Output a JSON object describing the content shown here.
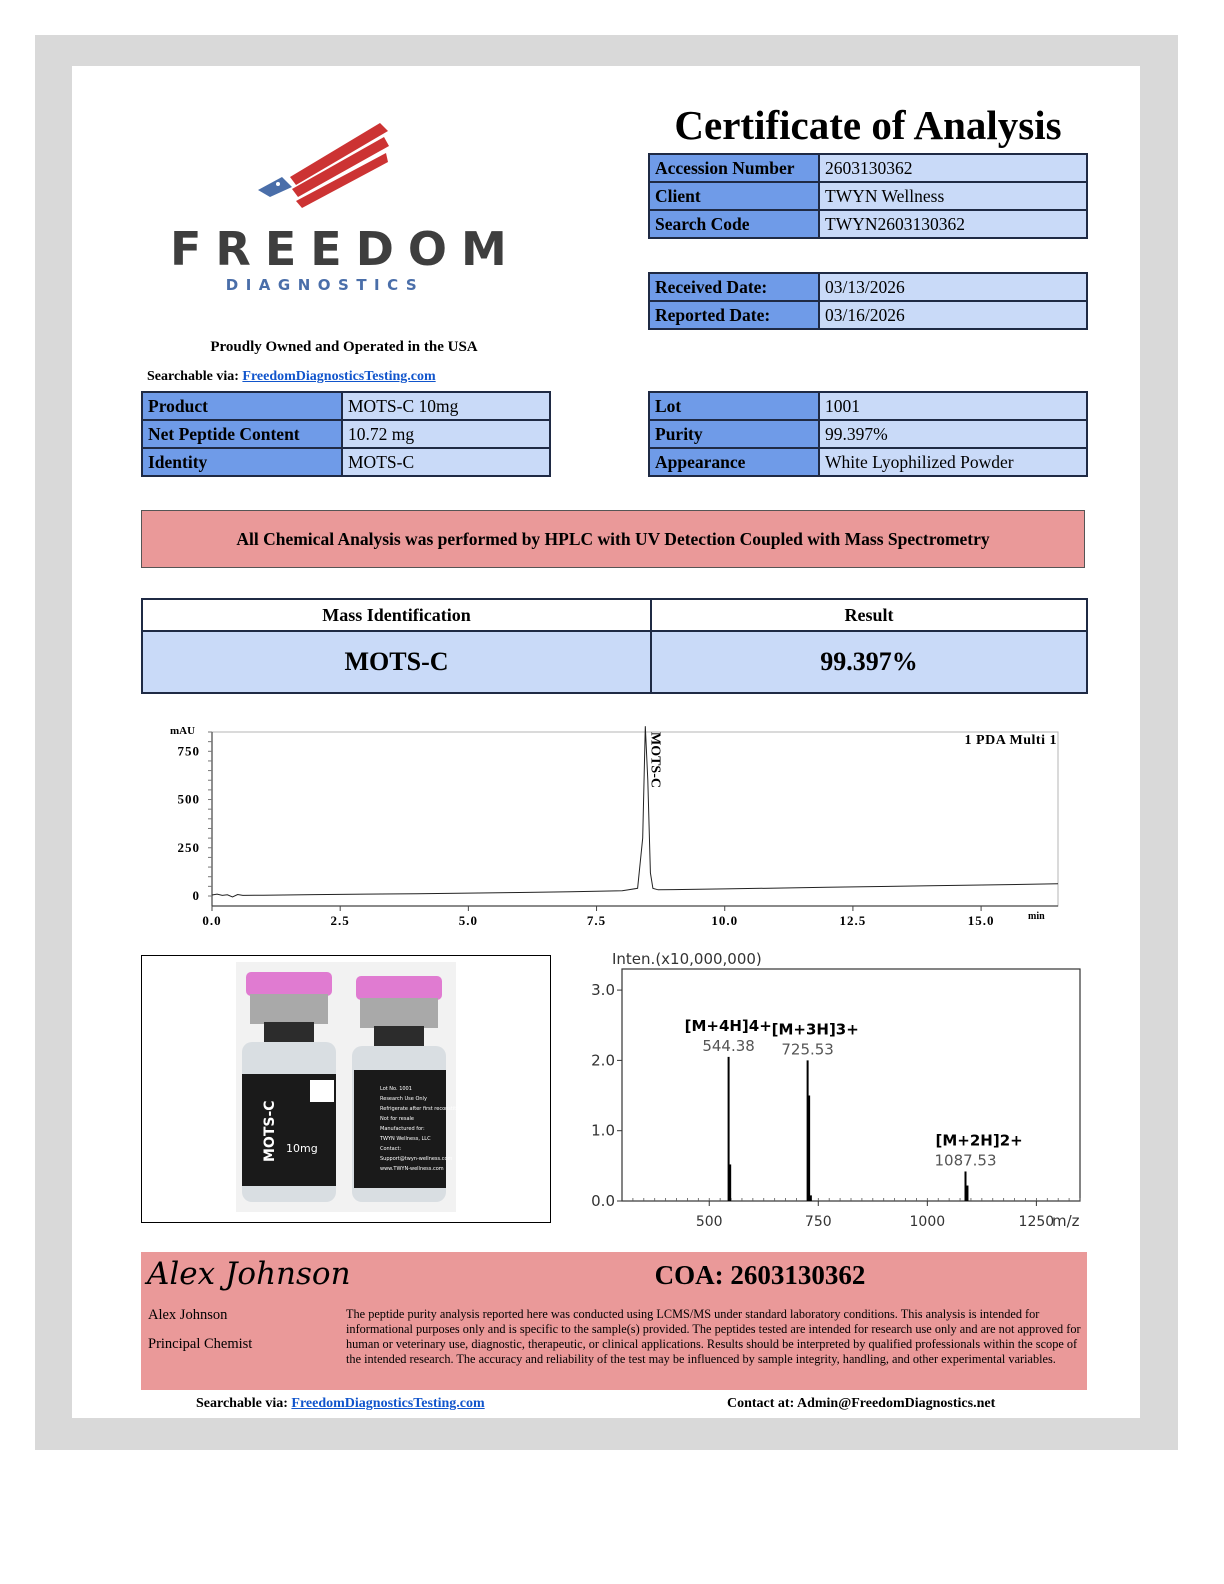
{
  "brand": {
    "name": "FREEDOM",
    "subtitle": "DIAGNOSTICS",
    "tagline": "Proudly Owned and Operated in the USA",
    "searchable_label": "Searchable via:",
    "website": "FreedomDiagnosticsTesting.com"
  },
  "title": "Certificate of Analysis",
  "accession": {
    "rows": [
      {
        "label": "Accession Number",
        "value": "2603130362"
      },
      {
        "label": "Client",
        "value": "TWYN Wellness"
      },
      {
        "label": "Search Code",
        "value": "TWYN2603130362"
      }
    ]
  },
  "dates": {
    "rows": [
      {
        "label": "Received Date:",
        "value": "03/13/2026"
      },
      {
        "label": "Reported Date:",
        "value": "03/16/2026"
      }
    ]
  },
  "product": {
    "rows": [
      {
        "label": "Product",
        "value": "MOTS-C 10mg"
      },
      {
        "label": "Net Peptide Content",
        "value": "10.72 mg"
      },
      {
        "label": "Identity",
        "value": "MOTS-C"
      }
    ]
  },
  "lot": {
    "rows": [
      {
        "label": "Lot",
        "value": "1001"
      },
      {
        "label": "Purity",
        "value": "99.397%"
      },
      {
        "label": "Appearance",
        "value": "White Lyophilized Powder"
      }
    ]
  },
  "method_banner": "All Chemical Analysis was performed by HPLC with UV Detection Coupled with Mass Spectrometry",
  "mass_table": {
    "headers": [
      "Mass Identification",
      "Result"
    ],
    "row": [
      "MOTS-C",
      "99.397%"
    ]
  },
  "chart_data": [
    {
      "type": "line",
      "title": "1 PDA Multi 1",
      "ylabel": "mAU",
      "xlabel": "min",
      "x_ticks": [
        "0.0",
        "2.5",
        "5.0",
        "7.5",
        "10.0",
        "12.5",
        "15.0"
      ],
      "y_ticks": [
        "0",
        "250",
        "500",
        "750"
      ],
      "xlim": [
        0,
        16.5
      ],
      "ylim": [
        0,
        850
      ],
      "peak_label": "MOTS-C",
      "series": [
        {
          "x": [
            0.0,
            0.1,
            0.2,
            0.3,
            0.4,
            0.5,
            0.6,
            1.0,
            2.0,
            3.0,
            4.0,
            5.0,
            6.0,
            7.0,
            8.0,
            8.3,
            8.4,
            8.45,
            8.5,
            8.55,
            8.6,
            8.7,
            9.0,
            10.0,
            12.0,
            14.0,
            16.5
          ],
          "y": [
            5,
            10,
            3,
            6,
            -5,
            8,
            3,
            4,
            7,
            10,
            12,
            15,
            18,
            22,
            27,
            40,
            300,
            880,
            600,
            120,
            40,
            32,
            33,
            37,
            45,
            53,
            63
          ]
        }
      ]
    },
    {
      "type": "bar",
      "title": "Inten.(x10,000,000)",
      "xlabel": "m/z",
      "x_ticks": [
        "500",
        "750",
        "1000",
        "1250"
      ],
      "y_ticks": [
        "0.0",
        "1.0",
        "2.0",
        "3.0"
      ],
      "xlim": [
        300,
        1350
      ],
      "ylim": [
        0,
        3.3
      ],
      "peaks": [
        {
          "mz": 544.38,
          "intensity": 2.05,
          "ion": "[M+4H]4+",
          "label": "544.38"
        },
        {
          "mz": 548,
          "intensity": 0.52
        },
        {
          "mz": 725.53,
          "intensity": 2.0,
          "ion": "[M+3H]3+",
          "label": "725.53"
        },
        {
          "mz": 729,
          "intensity": 1.5
        },
        {
          "mz": 733,
          "intensity": 0.08
        },
        {
          "mz": 1087.53,
          "intensity": 0.42,
          "ion": "[M+2H]2+",
          "label": "1087.53"
        },
        {
          "mz": 1092,
          "intensity": 0.22
        }
      ]
    }
  ],
  "vial": {
    "name": "MOTS-C",
    "dose": "10mg",
    "back_label": [
      "Lot No. 1001",
      "Research Use Only",
      "Refrigerate after first reconstitution",
      "Not for resale",
      "Manufactured for:",
      "TWYN Wellness, LLC",
      "Contact:",
      "Support@twyn-wellness.com",
      "www.TWYN-wellness.com"
    ]
  },
  "signature": {
    "script": "Alex Johnson",
    "name": "Alex Johnson",
    "title": "Principal Chemist"
  },
  "coa_label": "COA: 2603130362",
  "disclaimer": "The peptide purity analysis reported here was conducted using LCMS/MS under standard laboratory conditions. This analysis is intended for informational purposes only and is specific to the sample(s) provided. The peptides tested are intended for research use only and are not approved for human or veterinary use, diagnostic, therapeutic, or clinical applications. Results should be interpreted by qualified professionals within the scope of the intended research. The accuracy and reliability of the test may be influenced by sample integrity, handling, and other experimental variables.",
  "footer": {
    "searchable_label": "Searchable via:",
    "website": "FreedomDiagnosticsTesting.com",
    "contact": "Contact at: Admin@FreedomDiagnostics.net"
  },
  "colors": {
    "header_cell": "#6f9be8",
    "value_cell": "#c9daf8",
    "banner": "#ea9999",
    "brand_red": "#cc3333",
    "brand_blue": "#4a6ea9"
  }
}
